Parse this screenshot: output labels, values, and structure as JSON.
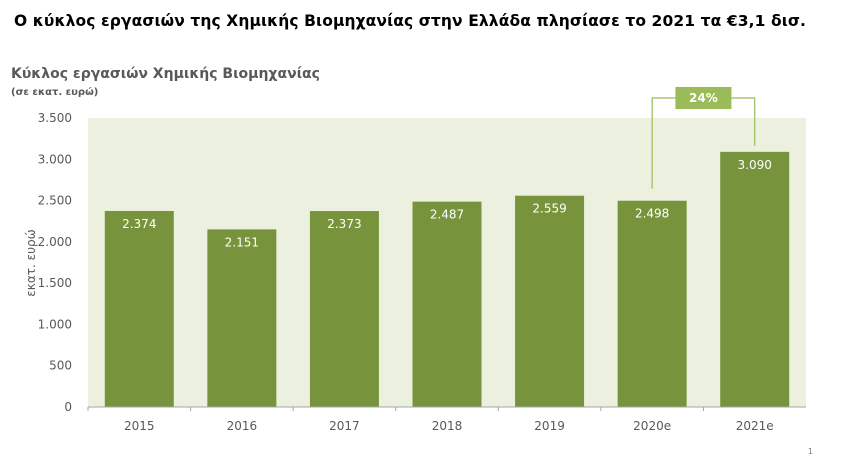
{
  "headline": "Ο κύκλος εργασιών της Χημικής Βιομηχανίας στην Ελλάδα πλησίασε το 2021 τα €3,1 δισ.",
  "page_number": "1",
  "colors": {
    "bar": "#77933c",
    "plot_background": "#ebf1de",
    "axis": "#a6a6a6",
    "growth_box": "#9bbb59",
    "bracket": "#9bbb59"
  },
  "chart_data": {
    "type": "bar",
    "title": "Κύκλος εργασιών Χημικής Βιομηχανίας",
    "subtitle": "(σε εκατ. ευρώ)",
    "xlabel": "",
    "ylabel": "εκατ. ευρώ",
    "categories": [
      "2015",
      "2016",
      "2017",
      "2018",
      "2019",
      "2020e",
      "2021e"
    ],
    "values": [
      2374,
      2151,
      2373,
      2487,
      2559,
      2498,
      3090
    ],
    "value_labels": [
      "2.374",
      "2.151",
      "2.373",
      "2.487",
      "2.559",
      "2.498",
      "3.090"
    ],
    "ylim": [
      0,
      3500
    ],
    "yticks": [
      0,
      500,
      1000,
      1500,
      2000,
      2500,
      3000,
      3500
    ],
    "ytick_labels": [
      "0",
      "500",
      "1.000",
      "1.500",
      "2.000",
      "2.500",
      "3.000",
      "3.500"
    ],
    "grid": false,
    "legend": "none",
    "annotations": [
      {
        "text": "24%",
        "from_category": "2020e",
        "to_category": "2021e"
      }
    ]
  }
}
